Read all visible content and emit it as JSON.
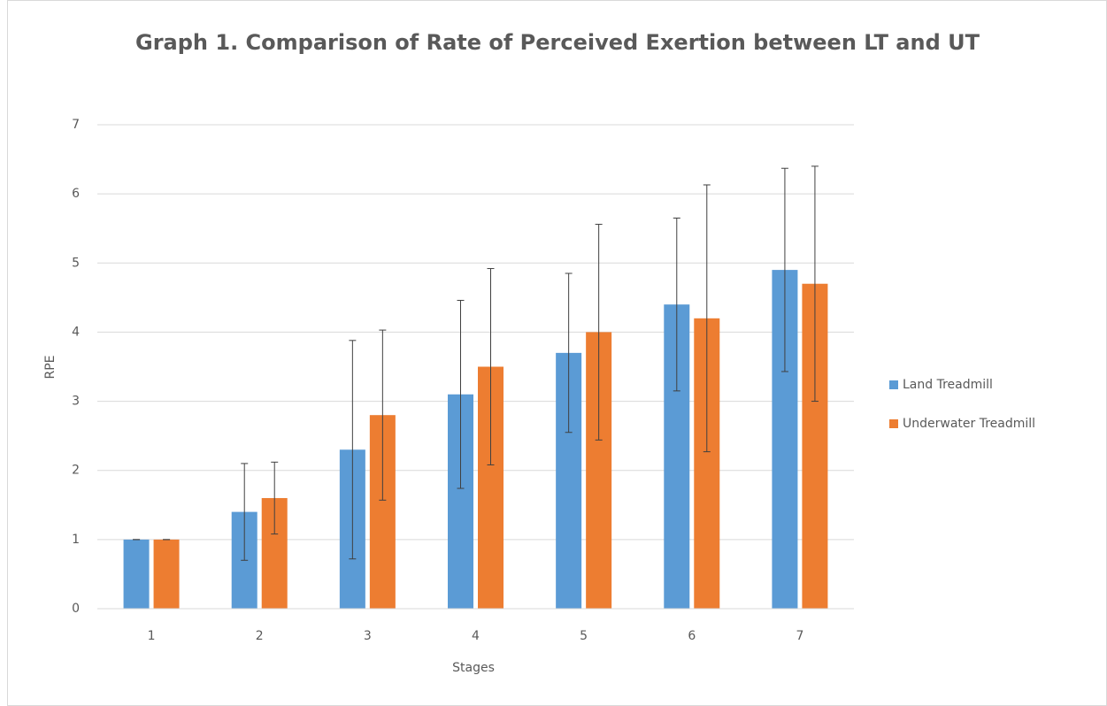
{
  "chart_data": {
    "type": "bar",
    "title": "Graph 1. Comparison of Rate of Perceived Exertion between LT and UT",
    "x_label": "Stages",
    "y_label": "RPE",
    "categories": [
      "1",
      "2",
      "3",
      "4",
      "5",
      "6",
      "7"
    ],
    "series": [
      {
        "name": "Land Treadmill",
        "color": "#5b9bd5",
        "values": [
          1,
          1.4,
          2.3,
          3.1,
          3.7,
          4.4,
          4.9
        ],
        "errors": [
          0,
          0.7,
          1.58,
          1.36,
          1.15,
          1.25,
          1.47
        ]
      },
      {
        "name": "Underwater Treadmill",
        "color": "#ed7d31",
        "values": [
          1,
          1.6,
          2.8,
          3.5,
          4.0,
          4.2,
          4.7
        ],
        "errors": [
          0,
          0.52,
          1.23,
          1.42,
          1.56,
          1.93,
          1.7
        ]
      }
    ],
    "ylim": [
      0,
      7
    ],
    "yticks": [
      0,
      1,
      2,
      3,
      4,
      5,
      6,
      7
    ],
    "grid": true,
    "legend": "right"
  }
}
